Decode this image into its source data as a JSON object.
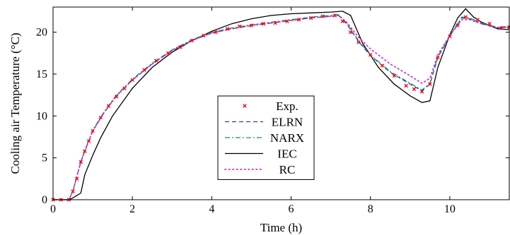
{
  "chart_data": {
    "type": "line",
    "xlabel": "Time (h)",
    "ylabel": "Cooling air Temperature (°C)",
    "xlim": [
      0,
      11.5
    ],
    "ylim": [
      0,
      23
    ],
    "xticks": [
      0,
      2,
      4,
      6,
      8,
      10
    ],
    "yticks": [
      0,
      5,
      10,
      15,
      20
    ],
    "grid": false,
    "legend_position": "bottom-center",
    "series": [
      {
        "name": "Exp.",
        "color": "#ff0000",
        "style": "markers",
        "x": [
          0.0,
          0.2,
          0.4,
          0.5,
          0.6,
          0.7,
          0.8,
          0.9,
          1.0,
          1.2,
          1.4,
          1.6,
          1.8,
          2.0,
          2.3,
          2.6,
          2.9,
          3.2,
          3.5,
          3.8,
          4.1,
          4.4,
          4.7,
          5.0,
          5.3,
          5.6,
          5.9,
          6.2,
          6.5,
          6.8,
          7.1,
          7.3,
          7.5,
          7.7,
          8.0,
          8.3,
          8.6,
          8.9,
          9.1,
          9.3,
          9.5,
          9.7,
          10.0,
          10.2,
          10.4,
          10.7,
          11.0,
          11.3,
          11.5
        ],
        "y": [
          0,
          0,
          0,
          1.0,
          2.5,
          4.5,
          5.8,
          7.0,
          8.2,
          9.8,
          11.2,
          12.3,
          13.3,
          14.3,
          15.5,
          16.6,
          17.5,
          18.2,
          19.0,
          19.6,
          20.0,
          20.4,
          20.7,
          20.8,
          21.0,
          21.1,
          21.3,
          21.5,
          21.7,
          21.9,
          22.0,
          21.3,
          20.0,
          18.8,
          17.3,
          16.0,
          14.8,
          13.6,
          13.2,
          12.9,
          13.8,
          17.0,
          19.5,
          20.8,
          21.8,
          21.5,
          21.0,
          20.5,
          20.6
        ]
      },
      {
        "name": "ELRN",
        "color": "#1f3fbf",
        "style": "dashed",
        "x": [
          0.0,
          0.4,
          0.5,
          0.6,
          0.7,
          0.8,
          1.0,
          1.3,
          1.6,
          2.0,
          2.5,
          3.0,
          3.5,
          4.0,
          4.5,
          5.0,
          5.5,
          6.0,
          6.5,
          7.0,
          7.2,
          7.4,
          7.7,
          8.0,
          8.5,
          9.0,
          9.3,
          9.5,
          9.7,
          10.0,
          10.3,
          10.5,
          10.8,
          11.2,
          11.5
        ],
        "y": [
          0,
          0,
          1.0,
          2.8,
          4.5,
          5.8,
          8.2,
          10.5,
          12.4,
          14.3,
          16.2,
          17.8,
          19.0,
          19.9,
          20.4,
          20.8,
          21.1,
          21.4,
          21.7,
          21.9,
          22.0,
          21.0,
          18.9,
          17.2,
          15.2,
          13.8,
          13.0,
          13.8,
          17.0,
          19.5,
          21.7,
          21.6,
          21.0,
          20.5,
          20.6
        ]
      },
      {
        "name": "NARX",
        "color": "#1f8f5f",
        "style": "dashdot",
        "x": [
          0.0,
          0.4,
          0.5,
          0.6,
          0.7,
          0.8,
          1.0,
          1.3,
          1.6,
          2.0,
          2.5,
          3.0,
          3.5,
          4.0,
          4.5,
          5.0,
          5.5,
          6.0,
          6.5,
          7.0,
          7.2,
          7.4,
          7.7,
          8.0,
          8.5,
          9.0,
          9.3,
          9.5,
          9.7,
          10.0,
          10.3,
          10.5,
          10.8,
          11.2,
          11.5
        ],
        "y": [
          0,
          0,
          1.0,
          2.8,
          4.6,
          5.9,
          8.3,
          10.6,
          12.5,
          14.4,
          16.3,
          17.9,
          19.1,
          20.0,
          20.5,
          20.9,
          21.2,
          21.5,
          21.8,
          22.0,
          22.1,
          21.1,
          19.0,
          17.3,
          15.3,
          13.9,
          13.1,
          13.9,
          17.1,
          19.6,
          21.8,
          21.7,
          21.1,
          20.6,
          20.7
        ]
      },
      {
        "name": "IEC",
        "color": "#000000",
        "style": "solid",
        "x": [
          0.0,
          0.4,
          0.5,
          0.7,
          0.8,
          1.0,
          1.2,
          1.5,
          2.0,
          2.5,
          3.0,
          3.5,
          4.0,
          4.5,
          5.0,
          5.5,
          6.0,
          6.5,
          7.0,
          7.3,
          7.5,
          7.8,
          8.2,
          8.6,
          9.0,
          9.3,
          9.5,
          9.7,
          10.0,
          10.2,
          10.4,
          10.6,
          10.8,
          11.2,
          11.5
        ],
        "y": [
          0,
          0,
          0.2,
          0.8,
          3.0,
          5.3,
          7.4,
          10.0,
          13.3,
          15.8,
          17.6,
          19.0,
          20.1,
          21.0,
          21.6,
          22.0,
          22.2,
          22.3,
          22.4,
          22.5,
          22.0,
          18.7,
          15.8,
          13.8,
          12.4,
          11.6,
          11.8,
          15.8,
          19.7,
          21.7,
          22.8,
          21.8,
          21.2,
          20.4,
          20.3
        ]
      },
      {
        "name": "RC",
        "color": "#cc33cc",
        "style": "dotted",
        "x": [
          0.0,
          0.4,
          0.5,
          0.6,
          0.7,
          0.8,
          1.0,
          1.3,
          1.6,
          2.0,
          2.5,
          3.0,
          3.5,
          4.0,
          4.5,
          5.0,
          5.5,
          6.0,
          6.5,
          7.0,
          7.2,
          7.4,
          7.7,
          8.0,
          8.5,
          9.0,
          9.3,
          9.5,
          9.7,
          10.0,
          10.3,
          10.5,
          10.8,
          11.2,
          11.5
        ],
        "y": [
          0,
          0,
          1.0,
          2.8,
          4.5,
          5.8,
          8.2,
          10.5,
          12.4,
          14.3,
          16.2,
          17.8,
          19.0,
          19.9,
          20.4,
          20.8,
          21.1,
          21.4,
          21.7,
          21.9,
          22.0,
          21.2,
          19.4,
          18.0,
          16.2,
          14.8,
          13.9,
          14.5,
          17.3,
          19.6,
          21.5,
          21.5,
          21.0,
          20.5,
          20.6
        ]
      }
    ]
  }
}
